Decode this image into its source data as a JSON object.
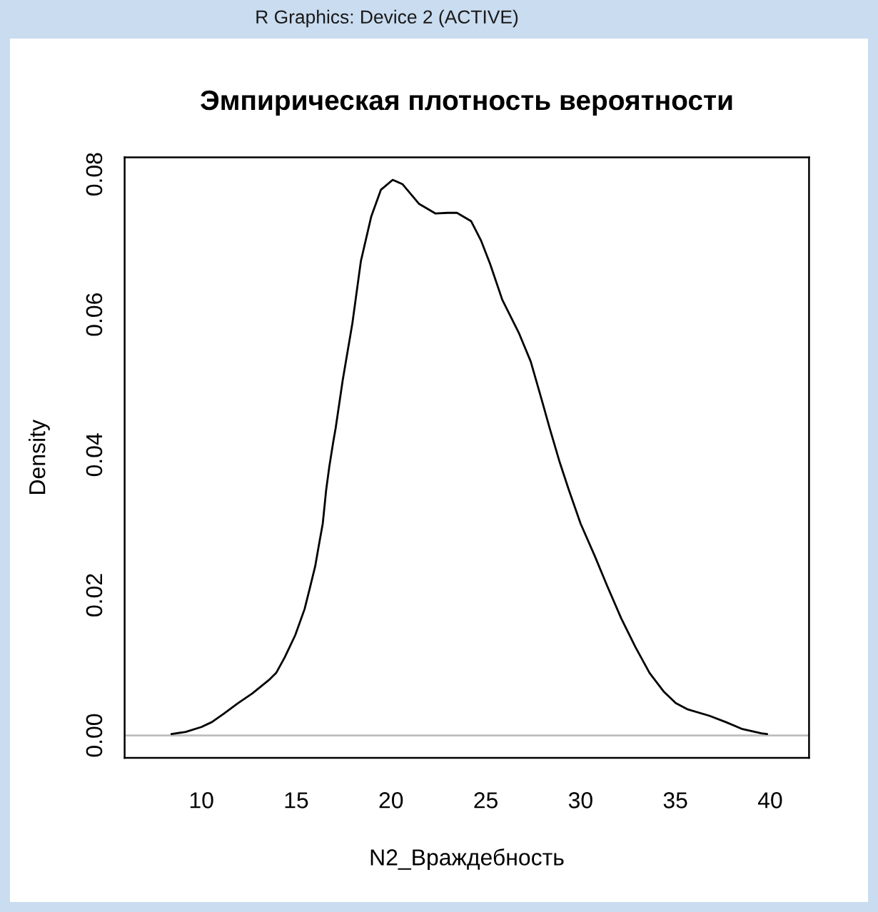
{
  "chart_data": {
    "type": "line",
    "title": "Эмпирическая плотность вероятности",
    "xlabel": "N2_Враждебность",
    "ylabel": "Density",
    "annotations": [
      "R Graphics: Device 2 (ACTIVE)"
    ],
    "series": [
      {
        "color": "#000000",
        "x": [
          8.42,
          9.17,
          10.0,
          10.55,
          11.18,
          11.93,
          12.69,
          13.56,
          13.94,
          14.39,
          14.95,
          15.44,
          15.7,
          16.0,
          16.2,
          16.4,
          16.58,
          16.75,
          16.95,
          17.08,
          17.45,
          17.96,
          18.41,
          18.96,
          19.47,
          20.09,
          20.6,
          21.47,
          22.35,
          23.0,
          23.48,
          24.23,
          24.74,
          25.23,
          25.87,
          26.74,
          27.37,
          27.87,
          28.37,
          28.88,
          29.38,
          30.0,
          30.76,
          31.39,
          32.14,
          32.89,
          33.64,
          34.4,
          35.02,
          35.66,
          36.79,
          37.66,
          38.54,
          39.54,
          39.84
        ],
        "values": [
          0.0002,
          0.0005,
          0.0012,
          0.0019,
          0.0031,
          0.0046,
          0.006,
          0.0079,
          0.0089,
          0.0111,
          0.0143,
          0.018,
          0.0208,
          0.0241,
          0.0272,
          0.0302,
          0.035,
          0.0384,
          0.0418,
          0.0438,
          0.0506,
          0.0587,
          0.0676,
          0.074,
          0.0778,
          0.0792,
          0.0786,
          0.0758,
          0.0744,
          0.0745,
          0.0745,
          0.0733,
          0.0706,
          0.0672,
          0.0621,
          0.0574,
          0.0533,
          0.0486,
          0.0438,
          0.0391,
          0.035,
          0.0302,
          0.0255,
          0.0214,
          0.0167,
          0.0126,
          0.0089,
          0.0062,
          0.0046,
          0.0037,
          0.0028,
          0.0019,
          0.0009,
          0.0003,
          0.0002
        ]
      }
    ],
    "xlim": [
      5.95,
      42.05
    ],
    "ylim": [
      -0.0032,
      0.0824
    ],
    "xticks": [
      10,
      15,
      20,
      25,
      30,
      35,
      40
    ],
    "yticks": [
      {
        "value": 0,
        "label": "0.00"
      },
      0.02,
      0.04,
      0.06,
      0.08
    ],
    "ref_lines": [
      {
        "axis": "y",
        "value": 0,
        "color": "#bebebe"
      }
    ],
    "marker": "none",
    "line_style": "solid"
  }
}
